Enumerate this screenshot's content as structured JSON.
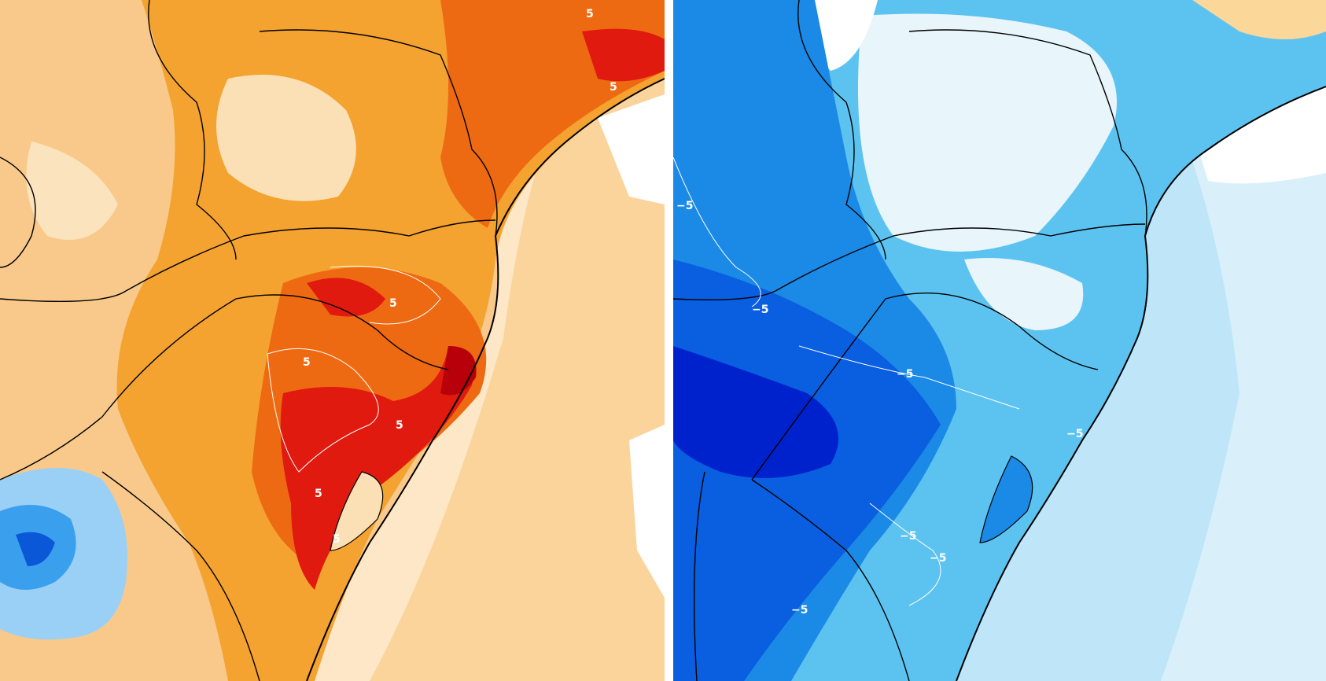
{
  "panels": [
    {
      "id": "left",
      "colors": {
        "ocean": "#fde7c7",
        "light": "#f8c98a",
        "mid": "#f4a230",
        "warm": "#ee6a12",
        "hot": "#e01a0f",
        "extreme": "#b8000a",
        "cool": "#3aa0ee",
        "cold": "#0a58d8"
      },
      "contour_labels": [
        "5",
        "5",
        "5",
        "5",
        "5",
        "5",
        "5",
        "5"
      ]
    },
    {
      "id": "right",
      "colors": {
        "ocean": "#bfe6f8",
        "light": "#e8f5fb",
        "mid": "#5cc3f0",
        "deep": "#1a8ae6",
        "deeper": "#0a5ee0",
        "deepest": "#0022cc",
        "warm": "#fbd79a"
      },
      "contour_labels": [
        "−5",
        "−5",
        "−5",
        "−5",
        "−5",
        "−5",
        "−5"
      ]
    }
  ]
}
